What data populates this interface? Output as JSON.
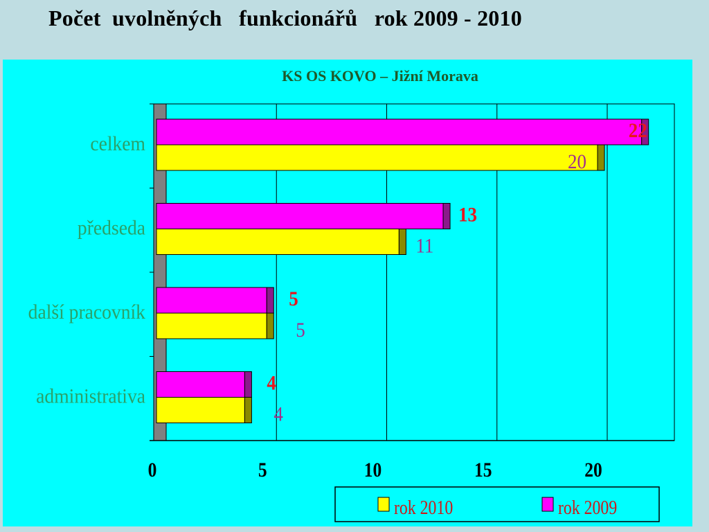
{
  "slide_title": "Počet  uvolněných   funkcionářů   rok 2009 - 2010",
  "chart_data": {
    "type": "bar",
    "orientation": "horizontal",
    "title": "KS OS KOVO – Jižní Morava",
    "categories": [
      "celkem",
      "předseda",
      "další pracovník",
      "administrativa"
    ],
    "series": [
      {
        "name": "rok 2009",
        "values": [
          22,
          13,
          5,
          4
        ],
        "color": "#ff00ff",
        "label_color": "#e8161e"
      },
      {
        "name": "rok  2010",
        "values": [
          20,
          11,
          5,
          4
        ],
        "color": "#ffff00",
        "label_color": "#a0308c"
      }
    ],
    "xlim": [
      0,
      23.5
    ],
    "xticks": [
      0,
      5,
      10,
      15,
      20
    ],
    "grid": true,
    "legend_position": "bottom-right",
    "category_label_color": "#2aa26a"
  }
}
